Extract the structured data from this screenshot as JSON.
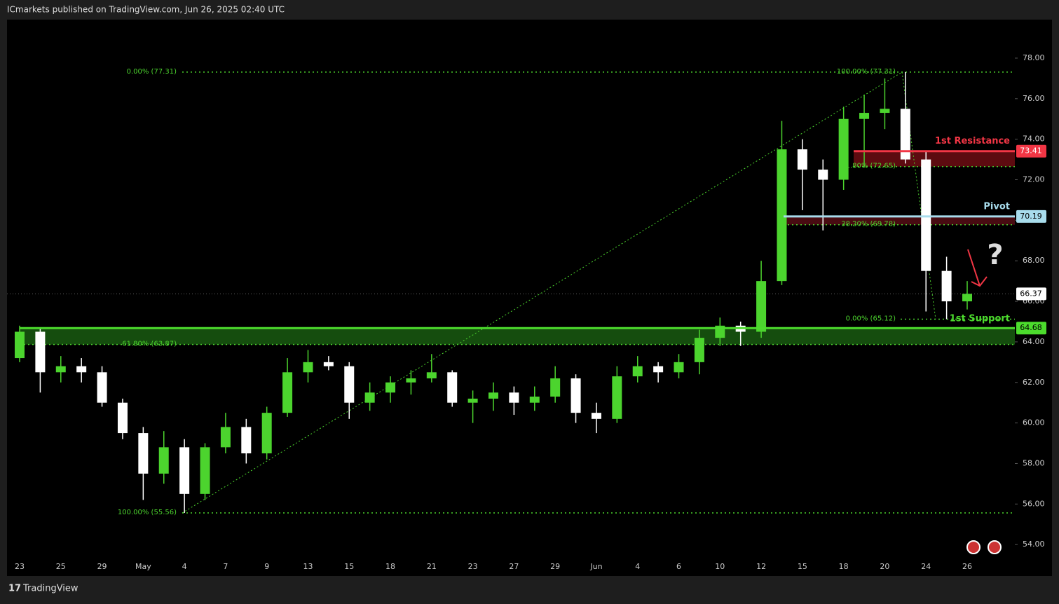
{
  "header": {
    "publisher": "ICmarkets published on TradingView.com, Jun 26, 2025 02:40 UTC"
  },
  "footer": {
    "brand": "TradingView"
  },
  "chart_data": {
    "type": "candlestick",
    "categories": [
      "23",
      null,
      "25",
      null,
      "29",
      null,
      "May",
      null,
      "4",
      null,
      "7",
      null,
      "9",
      null,
      "13",
      null,
      "15",
      null,
      "18",
      null,
      "21",
      null,
      "23",
      null,
      "27",
      null,
      "29",
      null,
      "Jun",
      null,
      "4",
      null,
      "6",
      null,
      "10",
      null,
      "12",
      null,
      "15",
      null,
      "18",
      null,
      "20",
      null,
      "24",
      null,
      "26"
    ],
    "open": [
      63.2,
      64.5,
      62.5,
      62.8,
      62.5,
      61.0,
      59.5,
      57.5,
      58.8,
      56.5,
      58.8,
      59.8,
      58.5,
      60.5,
      62.5,
      63.0,
      62.8,
      61.0,
      61.5,
      62.0,
      62.2,
      62.5,
      61.0,
      61.2,
      61.5,
      61.0,
      61.3,
      62.2,
      60.5,
      60.2,
      62.3,
      62.8,
      62.5,
      63.0,
      64.2,
      64.8,
      64.5,
      67.0,
      73.5,
      72.5,
      72.0,
      75.0,
      75.3,
      75.5,
      73.0,
      67.5,
      66.0
    ],
    "high": [
      64.8,
      64.7,
      63.3,
      63.2,
      62.8,
      61.2,
      59.8,
      59.6,
      59.2,
      59.0,
      60.5,
      60.2,
      60.8,
      63.2,
      63.6,
      63.3,
      63.0,
      62.0,
      62.3,
      62.6,
      63.4,
      62.6,
      61.6,
      62.0,
      61.8,
      61.8,
      62.8,
      62.4,
      61.0,
      62.8,
      63.3,
      63.0,
      63.4,
      64.6,
      65.2,
      65.0,
      68.0,
      74.9,
      74.0,
      73.0,
      75.6,
      76.2,
      77.0,
      77.31,
      73.4,
      68.2,
      67.0
    ],
    "low": [
      63.0,
      61.5,
      62.0,
      62.0,
      60.8,
      59.2,
      56.2,
      57.0,
      55.56,
      56.2,
      58.5,
      58.0,
      58.2,
      60.3,
      62.0,
      62.6,
      60.2,
      60.6,
      61.0,
      61.4,
      62.0,
      60.8,
      60.0,
      60.6,
      60.4,
      60.6,
      61.0,
      60.0,
      59.5,
      60.0,
      62.0,
      62.0,
      62.2,
      62.4,
      63.8,
      63.8,
      64.2,
      66.8,
      70.5,
      69.5,
      71.5,
      72.6,
      74.5,
      72.8,
      65.5,
      65.12,
      65.6
    ],
    "close": [
      64.5,
      62.5,
      62.8,
      62.5,
      61.0,
      59.5,
      57.5,
      58.8,
      56.5,
      58.8,
      59.8,
      58.5,
      60.5,
      62.5,
      63.0,
      62.8,
      61.0,
      61.5,
      62.0,
      62.2,
      62.5,
      61.0,
      61.2,
      61.5,
      61.0,
      61.3,
      62.2,
      60.5,
      60.2,
      62.3,
      62.8,
      62.5,
      63.0,
      64.2,
      64.8,
      64.5,
      67.0,
      73.5,
      72.5,
      72.0,
      75.0,
      75.3,
      75.5,
      73.0,
      67.5,
      66.0,
      66.37
    ],
    "up_color": "#4cd42e",
    "down_color": "#ffffff",
    "ylim": [
      52.45,
      79.9
    ],
    "yticks": [
      {
        "value": 78,
        "label": "78.00"
      },
      {
        "value": 76,
        "label": "76.00"
      },
      {
        "value": 74,
        "label": "74.00"
      },
      {
        "value": 72,
        "label": "72.00"
      },
      {
        "value": 70,
        "label": "70.00"
      },
      {
        "value": 68,
        "label": "68.00"
      },
      {
        "value": 66,
        "label": "66.00"
      },
      {
        "value": 64,
        "label": "64.00"
      },
      {
        "value": 62,
        "label": "62.00"
      },
      {
        "value": 60,
        "label": "60.00"
      },
      {
        "value": 58,
        "label": "58.00"
      },
      {
        "value": 56,
        "label": "56.00"
      },
      {
        "value": 54,
        "label": "54.00"
      }
    ],
    "last_price": 66.37,
    "levels": [
      {
        "name": "1st Resistance",
        "value": 73.41,
        "color": "#f23645"
      },
      {
        "name": "Pivot",
        "value": 70.19,
        "color": "#a8dcec"
      },
      {
        "name": "1st Support",
        "value": 64.68,
        "color": "#4cdb2d"
      }
    ],
    "fib_levels": [
      {
        "label": "0.00% (77.31)",
        "value": 77.31
      },
      {
        "label": "100.00% (77.31)",
        "value": 77.31
      },
      {
        "label": "100.00% (55.56)",
        "value": 55.56
      },
      {
        "label": "61.80% (72.65)",
        "value": 72.65
      },
      {
        "label": "38.20% (69.78)",
        "value": 69.78
      },
      {
        "label": "0.00% (65.12)",
        "value": 65.12
      },
      {
        "label": "61.80% (63.87)",
        "value": 63.87
      }
    ],
    "annotation": "?"
  }
}
